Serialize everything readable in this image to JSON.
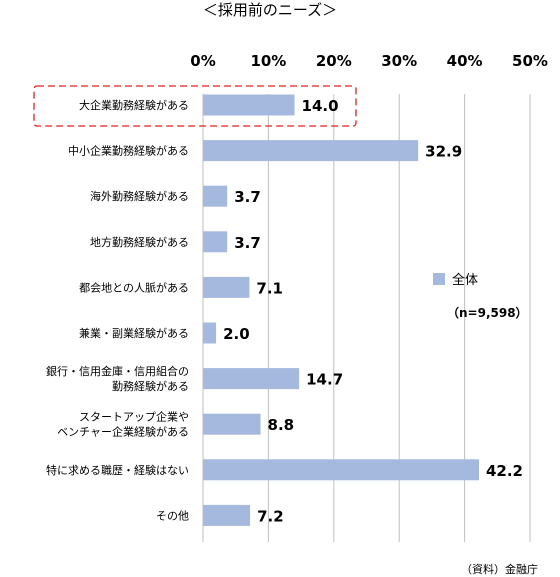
{
  "chart_data": {
    "type": "bar",
    "orientation": "horizontal",
    "title": "＜採用前のニーズ＞",
    "categories": [
      "大企業勤務経験がある",
      "中小企業勤務経験がある",
      "海外勤務経験がある",
      "地方勤務経験がある",
      "都会地との人脈がある",
      "兼業・副業経験がある",
      "銀行・信用金庫・信用組合の\n勤務経験がある",
      "スタートアップ企業や\nベンチャー企業経験がある",
      "特に求める職歴・経験はない",
      "その他"
    ],
    "series": [
      {
        "name": "全体",
        "values": [
          14.0,
          32.9,
          3.7,
          3.7,
          7.1,
          2.0,
          14.7,
          8.8,
          42.2,
          7.2
        ]
      }
    ],
    "data_labels": [
      "14.0",
      "32.9",
      "3.7",
      "3.7",
      "7.1",
      "2.0",
      "14.7",
      "8.8",
      "42.2",
      "7.2"
    ],
    "x_ticks": [
      "0%",
      "10%",
      "20%",
      "30%",
      "40%",
      "50%"
    ],
    "xlim": [
      0,
      50
    ],
    "grid": "vertical",
    "axis_position": "top",
    "legend_position": "right",
    "highlighted_category": "大企業勤務経験がある",
    "note": "（n=9,598）",
    "source": "（資料）金融庁",
    "colors": {
      "bar": "#a5b8de",
      "grid": "#bfbfbf",
      "highlight": "#e02020"
    }
  }
}
